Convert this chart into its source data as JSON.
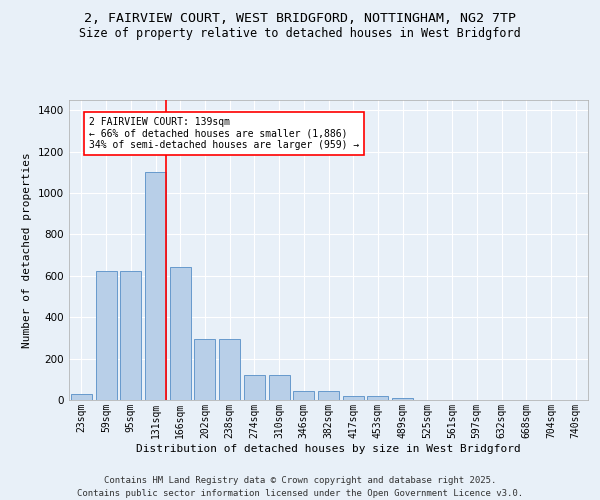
{
  "title_line1": "2, FAIRVIEW COURT, WEST BRIDGFORD, NOTTINGHAM, NG2 7TP",
  "title_line2": "Size of property relative to detached houses in West Bridgford",
  "xlabel": "Distribution of detached houses by size in West Bridgford",
  "ylabel": "Number of detached properties",
  "categories": [
    "23sqm",
    "59sqm",
    "95sqm",
    "131sqm",
    "166sqm",
    "202sqm",
    "238sqm",
    "274sqm",
    "310sqm",
    "346sqm",
    "382sqm",
    "417sqm",
    "453sqm",
    "489sqm",
    "525sqm",
    "561sqm",
    "597sqm",
    "632sqm",
    "668sqm",
    "704sqm",
    "740sqm"
  ],
  "values": [
    28,
    625,
    625,
    1100,
    645,
    295,
    295,
    120,
    120,
    45,
    45,
    18,
    18,
    12,
    0,
    0,
    0,
    0,
    0,
    0,
    0
  ],
  "bar_color": "#b8cfe8",
  "bar_edge_color": "#6699cc",
  "red_line_x": 3.42,
  "annotation_text": "2 FAIRVIEW COURT: 139sqm\n← 66% of detached houses are smaller (1,886)\n34% of semi-detached houses are larger (959) →",
  "footer_line1": "Contains HM Land Registry data © Crown copyright and database right 2025.",
  "footer_line2": "Contains public sector information licensed under the Open Government Licence v3.0.",
  "ylim": [
    0,
    1450
  ],
  "background_color": "#e8f0f8",
  "grid_color": "#ffffff",
  "title_fontsize": 9.5,
  "subtitle_fontsize": 8.5,
  "tick_fontsize": 7,
  "ylabel_fontsize": 8,
  "xlabel_fontsize": 8,
  "footer_fontsize": 6.5
}
